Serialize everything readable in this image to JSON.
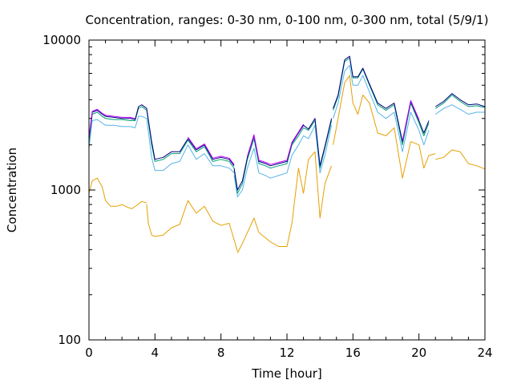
{
  "chart_data": {
    "type": "line",
    "title": "Concentration, ranges: 0-30 nm, 0-100 nm, 0-300 nm, total (5/9/1)",
    "xlabel": "Time [hour]",
    "ylabel": "Concentration",
    "xlim": [
      0,
      24
    ],
    "ylim": [
      100,
      10000
    ],
    "yscale": "log",
    "xticks": [
      0,
      4,
      8,
      12,
      16,
      20,
      24
    ],
    "yticks": [
      100,
      1000,
      10000
    ],
    "xtick_labels": [
      "0",
      "4",
      "8",
      "12",
      "16",
      "20",
      "24"
    ],
    "ytick_labels": [
      "100",
      "1000",
      "10000"
    ],
    "grid": false,
    "legend": "none",
    "series": [
      {
        "color": "#e69f00",
        "segments": [
          {
            "x": [
              0,
              0.2,
              0.5,
              0.8,
              1.0,
              1.3,
              1.7,
              2.0,
              2.3,
              2.6,
              2.9,
              3.2,
              3.5
            ],
            "y": [
              950,
              1150,
              1200,
              1050,
              850,
              780,
              780,
              800,
              770,
              750,
              790,
              840,
              820
            ]
          },
          {
            "x": [
              3.5,
              3.6,
              3.8,
              4.0,
              4.5,
              5.0,
              5.5,
              6.0,
              6.5,
              7.0,
              7.5,
              8.0,
              8.5,
              9.0
            ],
            "y": [
              800,
              600,
              500,
              490,
              500,
              560,
              590,
              850,
              700,
              780,
              620,
              580,
              600,
              390
            ]
          },
          {
            "x": [
              9.0,
              9.3,
              9.7,
              10.0,
              10.3,
              10.7,
              11.0,
              11.5,
              12.0,
              12.3,
              12.7,
              13.0,
              13.3,
              13.7,
              14.0,
              14.3,
              14.7
            ],
            "y": [
              380,
              440,
              550,
              650,
              520,
              480,
              450,
              420,
              420,
              600,
              1400,
              950,
              1600,
              1800,
              650,
              1100,
              1450
            ]
          },
          {
            "x": [
              14.8,
              15.1,
              15.5,
              15.8,
              16.0,
              16.3,
              16.6,
              17.0,
              17.5,
              18.0,
              18.5,
              19.0,
              19.5,
              20.0,
              20.3,
              20.6,
              21.0
            ],
            "y": [
              2000,
              3000,
              5200,
              5800,
              3800,
              3200,
              4300,
              3800,
              2400,
              2300,
              2600,
              1200,
              2100,
              2000,
              1400,
              1700,
              1750
            ]
          },
          {
            "x": [
              21.0,
              21.5,
              22.0,
              22.5,
              23.0,
              23.5,
              24.0
            ],
            "y": [
              1600,
              1650,
              1850,
              1800,
              1500,
              1450,
              1380
            ]
          }
        ]
      },
      {
        "color": "#56b4e9",
        "segments": [
          {
            "x": [
              0,
              0.2,
              0.5,
              0.8,
              1.0,
              1.5,
              2.0,
              2.5,
              2.8,
              3.0,
              3.2,
              3.5,
              3.8,
              4.0,
              4.5,
              5.0,
              5.5,
              6.0,
              6.5,
              7.0,
              7.5,
              8.0,
              8.5,
              8.8
            ],
            "y": [
              1900,
              2900,
              2950,
              2800,
              2700,
              2700,
              2650,
              2650,
              2600,
              3100,
              3100,
              3000,
              1650,
              1350,
              1350,
              1500,
              1550,
              2000,
              1600,
              1750,
              1450,
              1450,
              1400,
              1300
            ]
          },
          {
            "x": [
              8.8,
              9.0,
              9.3,
              9.6,
              10.0,
              10.3,
              10.7,
              11.0,
              11.5,
              12.0,
              12.3,
              12.7,
              13.0,
              13.3,
              13.7,
              14.0,
              14.3,
              14.7
            ],
            "y": [
              1250,
              900,
              1000,
              1400,
              1900,
              1300,
              1250,
              1200,
              1250,
              1300,
              1700,
              2000,
              2300,
              2200,
              2700,
              1300,
              1700,
              2700
            ]
          },
          {
            "x": [
              14.8,
              15.1,
              15.5,
              15.8,
              16.0,
              16.3,
              16.6,
              17.0,
              17.5,
              18.0,
              18.5,
              19.0,
              19.5,
              20.0,
              20.3,
              20.6
            ],
            "y": [
              3000,
              3800,
              6200,
              6800,
              5000,
              5000,
              5800,
              4500,
              3300,
              3000,
              3300,
              1800,
              3300,
              2500,
              2000,
              2500
            ]
          },
          {
            "x": [
              21.0,
              21.5,
              22.0,
              22.5,
              23.0,
              23.5,
              24.0
            ],
            "y": [
              3200,
              3500,
              3700,
              3450,
              3200,
              3300,
              3300
            ]
          }
        ]
      },
      {
        "color": "#009e73",
        "segments": [
          {
            "x": [
              0,
              0.2,
              0.5,
              0.8,
              1.0,
              1.5,
              2.0,
              2.5,
              2.8,
              3.0,
              3.2,
              3.5,
              3.8,
              4.0,
              4.5,
              5.0,
              5.5,
              6.0,
              6.5,
              7.0,
              7.5,
              8.0,
              8.5,
              8.8
            ],
            "y": [
              2100,
              3200,
              3300,
              3100,
              3000,
              2950,
              2950,
              2900,
              2900,
              3500,
              3600,
              3400,
              2000,
              1550,
              1600,
              1750,
              1750,
              2150,
              1800,
              1950,
              1550,
              1600,
              1550,
              1400
            ]
          },
          {
            "x": [
              8.8,
              9.0,
              9.3,
              9.6,
              10.0,
              10.3,
              10.7,
              11.0,
              11.5,
              12.0,
              12.3,
              12.7,
              13.0,
              13.3,
              13.7,
              14.0,
              14.3,
              14.7
            ],
            "y": [
              1350,
              950,
              1100,
              1600,
              2200,
              1500,
              1450,
              1400,
              1450,
              1500,
              2000,
              2300,
              2600,
              2500,
              2900,
              1400,
              1900,
              2900
            ]
          },
          {
            "x": [
              14.8,
              15.1,
              15.5,
              15.8,
              16.0,
              16.3,
              16.6,
              17.0,
              17.5,
              18.0,
              18.5,
              19.0,
              19.5,
              20.0,
              20.3,
              20.6
            ],
            "y": [
              3400,
              4200,
              7200,
              7600,
              5600,
              5600,
              6400,
              5000,
              3700,
              3400,
              3700,
              2000,
              3800,
              2800,
              2300,
              2800
            ]
          },
          {
            "x": [
              21.0,
              21.5,
              22.0,
              22.5,
              23.0,
              23.5,
              24.0
            ],
            "y": [
              3500,
              3800,
              4300,
              3900,
              3600,
              3650,
              3550
            ]
          }
        ]
      },
      {
        "color": "#000080",
        "segments": [
          {
            "x": [
              0,
              0.2,
              0.5,
              0.8,
              1.0,
              1.5,
              2.0,
              2.5,
              2.8,
              3.0,
              3.2,
              3.5,
              3.8,
              4.0,
              4.5,
              5.0,
              5.5,
              6.0,
              6.5,
              7.0,
              7.5,
              8.0,
              8.5,
              8.8
            ],
            "y": [
              2200,
              3300,
              3400,
              3200,
              3100,
              3050,
              3000,
              3000,
              2950,
              3600,
              3700,
              3500,
              2100,
              1600,
              1650,
              1800,
              1800,
              2200,
              1850,
              2000,
              1600,
              1650,
              1600,
              1450
            ]
          },
          {
            "x": [
              8.8,
              9.0,
              9.3,
              9.6,
              10.0,
              10.3,
              10.7,
              11.0,
              11.5,
              12.0,
              12.3,
              12.7,
              13.0,
              13.3,
              13.7,
              14.0,
              14.3,
              14.7
            ],
            "y": [
              1400,
              1000,
              1150,
              1650,
              2300,
              1550,
              1500,
              1450,
              1500,
              1550,
              2050,
              2400,
              2700,
              2550,
              3000,
              1450,
              1950,
              3000
            ]
          },
          {
            "x": [
              14.8,
              15.1,
              15.5,
              15.8,
              16.0,
              16.3,
              16.6,
              17.0,
              17.5,
              18.0,
              18.5,
              19.0,
              19.5,
              20.0,
              20.3,
              20.6
            ],
            "y": [
              3500,
              4300,
              7400,
              7800,
              5700,
              5700,
              6500,
              5100,
              3800,
              3500,
              3800,
              2100,
              3900,
              2900,
              2400,
              2900
            ]
          },
          {
            "x": [
              21.0,
              21.5,
              22.0,
              22.5,
              23.0,
              23.5,
              24.0
            ],
            "y": [
              3600,
              3900,
              4400,
              4000,
              3700,
              3750,
              3600
            ]
          }
        ]
      },
      {
        "color": "#c000ff",
        "segments": [
          {
            "x": [
              0,
              0.2,
              0.5,
              0.8,
              1.0,
              1.5,
              2.0,
              2.5,
              2.8
            ],
            "y": [
              2250,
              3350,
              3450,
              3250,
              3150,
              3100,
              3050,
              3050,
              3000
            ]
          },
          {
            "x": [
              6.0,
              6.5,
              7.0,
              7.5,
              8.0,
              8.5,
              8.8
            ],
            "y": [
              2250,
              1880,
              2030,
              1630,
              1680,
              1630,
              1480
            ]
          },
          {
            "x": [
              9.6,
              10.0,
              10.3,
              10.7,
              11.0,
              11.5,
              12.0,
              12.3,
              12.7,
              13.0
            ],
            "y": [
              1680,
              2340,
              1580,
              1530,
              1480,
              1530,
              1580,
              2080,
              2440,
              2750
            ]
          },
          {
            "x": [
              19.0,
              19.5,
              20.0
            ],
            "y": [
              2130,
              3950,
              2950
            ]
          }
        ]
      }
    ]
  }
}
